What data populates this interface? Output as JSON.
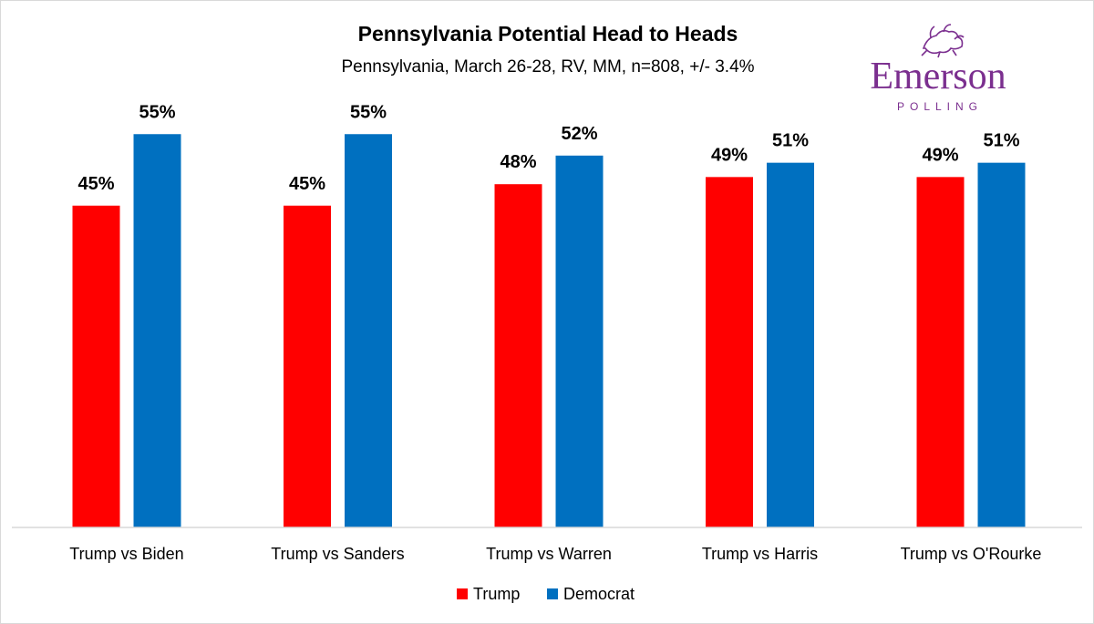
{
  "logo": {
    "name": "Emerson",
    "sub": "POLLING",
    "color": "#7b2f8f"
  },
  "chart_data": {
    "type": "bar",
    "title": "Pennsylvania Potential Head to Heads",
    "subtitle": "Pennsylvania, March 26-28, RV, MM, n=808, +/- 3.4%",
    "categories": [
      "Trump vs Biden",
      "Trump vs Sanders",
      "Trump vs Warren",
      "Trump vs Harris",
      "Trump vs O'Rourke"
    ],
    "series": [
      {
        "name": "Trump",
        "color": "#ff0000",
        "values": [
          45,
          45,
          48,
          49,
          49
        ]
      },
      {
        "name": "Democrat",
        "color": "#0070c0",
        "values": [
          55,
          55,
          52,
          51,
          51
        ]
      }
    ],
    "value_suffix": "%",
    "ylim": [
      0,
      58
    ],
    "grid": false,
    "legend": "bottom-center"
  }
}
